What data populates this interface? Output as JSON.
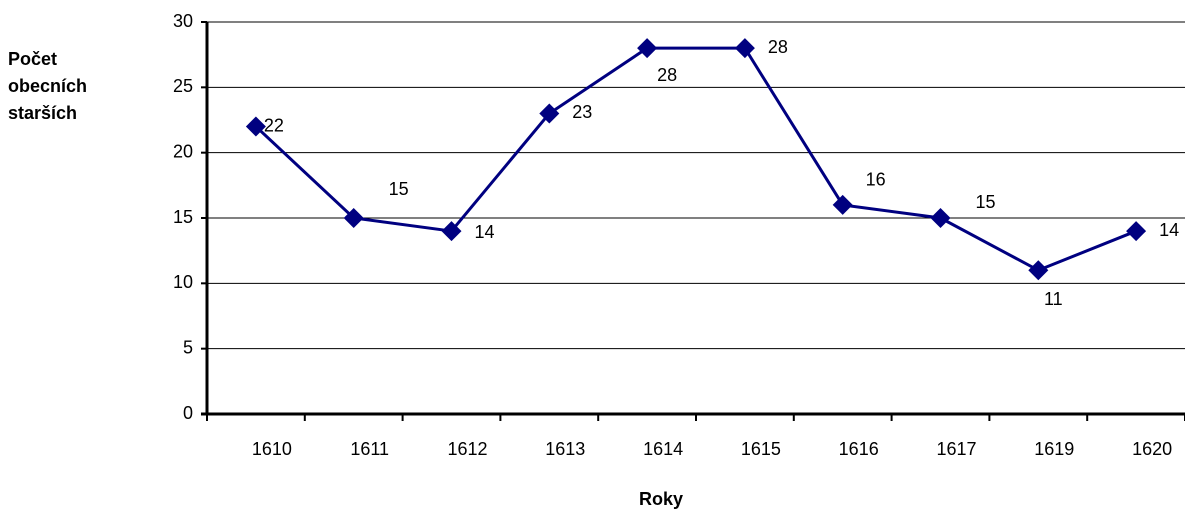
{
  "chart_data": {
    "type": "line",
    "y_label": [
      "Počet",
      "obecních",
      "starších"
    ],
    "x_label": "Roky",
    "categories": [
      "1610",
      "1611",
      "1612",
      "1613",
      "1614",
      "1615",
      "1616",
      "1617",
      "1619",
      "1620"
    ],
    "values": [
      22,
      15,
      14,
      23,
      28,
      28,
      16,
      15,
      11,
      14
    ],
    "color": "#000080",
    "ylim": [
      0,
      30
    ],
    "yticks": [
      0,
      5,
      10,
      15,
      20,
      25,
      30
    ],
    "grid": true
  }
}
